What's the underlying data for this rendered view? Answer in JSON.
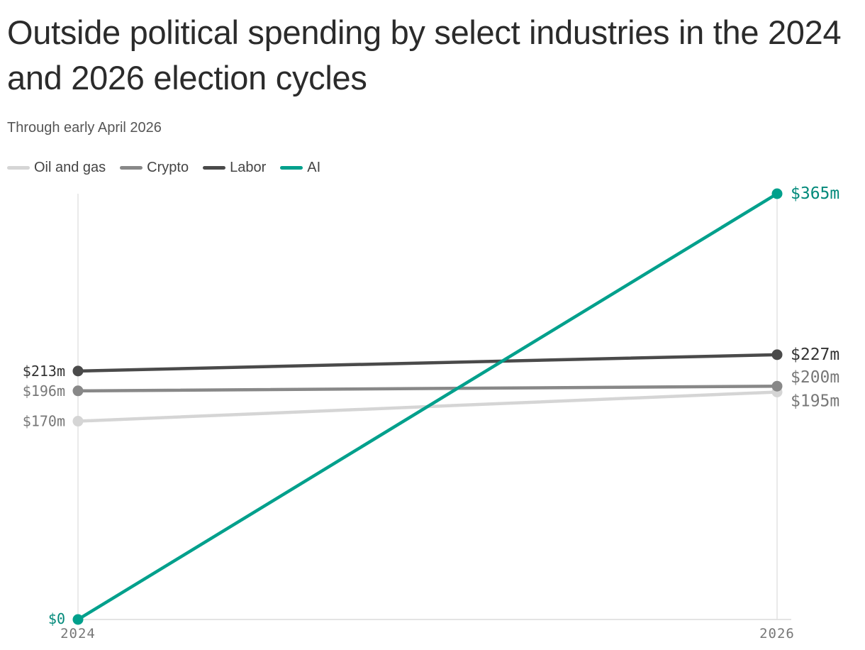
{
  "chart_data": {
    "type": "line",
    "title": "Outside political spending by select industries in the 2024 and 2026 election cycles",
    "subtitle": "Through early April 2026",
    "x": [
      "2024",
      "2026"
    ],
    "xlabel": "",
    "ylabel": "",
    "ylim": [
      0,
      365
    ],
    "grid": false,
    "legend_position": "top-left",
    "series": [
      {
        "name": "Oil and gas",
        "values": [
          170,
          195
        ],
        "labels": [
          "$170m",
          "$195m"
        ],
        "color": "#d5d5d5",
        "label_color": "#777777"
      },
      {
        "name": "Crypto",
        "values": [
          196,
          200
        ],
        "labels": [
          "$196m",
          "$200m"
        ],
        "color": "#888888",
        "label_color": "#777777"
      },
      {
        "name": "Labor",
        "values": [
          213,
          227
        ],
        "labels": [
          "$213m",
          "$227m"
        ],
        "color": "#4a4a4a",
        "label_color": "#333333"
      },
      {
        "name": "AI",
        "values": [
          0,
          365
        ],
        "labels": [
          "$0",
          "$365m"
        ],
        "color": "#00a08c",
        "label_color": "#00897a"
      }
    ]
  }
}
